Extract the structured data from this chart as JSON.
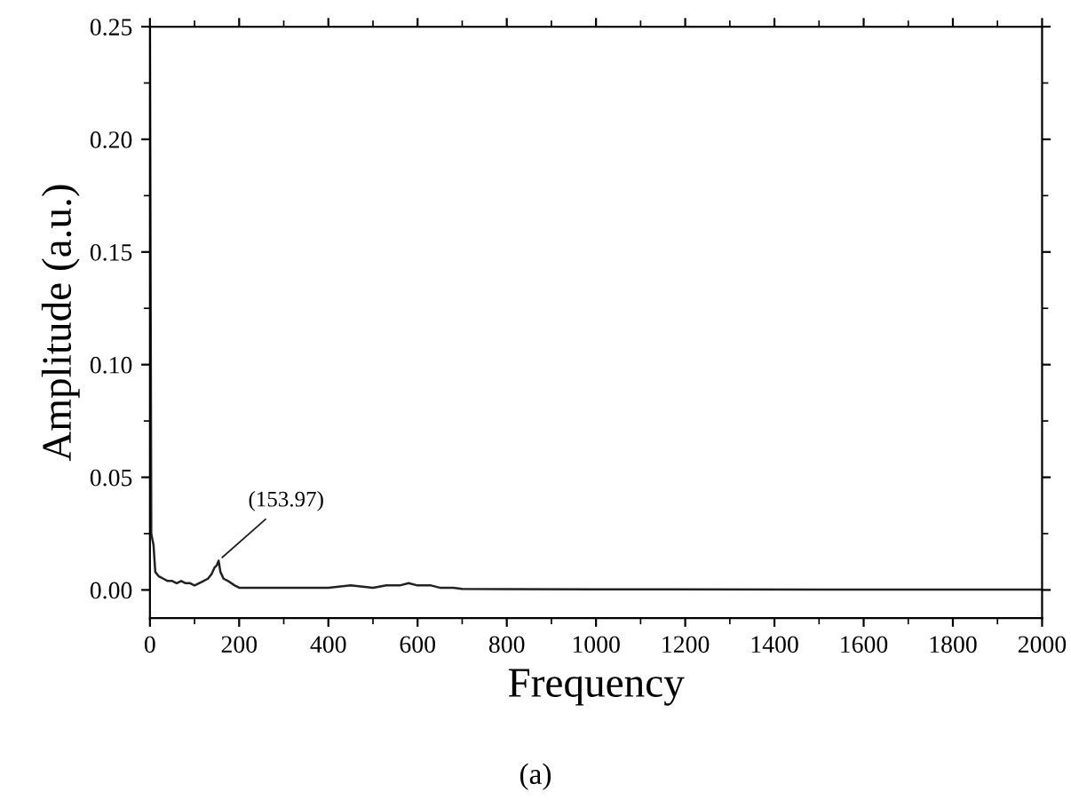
{
  "chart_data": {
    "type": "line",
    "xlabel": "Frequency",
    "ylabel": "Amplitude (a.u.)",
    "x": [
      0,
      3,
      8,
      12,
      20,
      30,
      40,
      50,
      60,
      70,
      80,
      90,
      100,
      110,
      120,
      130,
      138,
      145,
      150,
      153.97,
      158,
      165,
      175,
      190,
      200,
      250,
      300,
      350,
      400,
      450,
      500,
      530,
      560,
      580,
      600,
      630,
      650,
      680,
      700,
      800,
      1000,
      1500,
      2000
    ],
    "series": [
      {
        "color": "#222222",
        "values": [
          0.25,
          0.025,
          0.02,
          0.008,
          0.006,
          0.005,
          0.004,
          0.004,
          0.003,
          0.004,
          0.003,
          0.003,
          0.002,
          0.003,
          0.004,
          0.005,
          0.007,
          0.01,
          0.011,
          0.013,
          0.008,
          0.005,
          0.004,
          0.002,
          0.001,
          0.001,
          0.001,
          0.001,
          0.001,
          0.002,
          0.001,
          0.002,
          0.002,
          0.003,
          0.002,
          0.002,
          0.001,
          0.001,
          0.0005,
          0.0004,
          0.0003,
          0.0002,
          0.0002
        ]
      }
    ],
    "xlim": [
      0,
      2000
    ],
    "xticks": [
      0,
      200,
      400,
      600,
      800,
      1000,
      1200,
      1400,
      1600,
      1800,
      2000
    ],
    "ylim": [
      -0.0125,
      0.25
    ],
    "yticks": [
      {
        "value": 0,
        "label": "0.00"
      },
      {
        "value": 0.05,
        "label": "0.05"
      },
      {
        "value": 0.1,
        "label": "0.10"
      },
      {
        "value": 0.15,
        "label": "0.15"
      },
      {
        "value": 0.2,
        "label": "0.20"
      },
      {
        "value": 0.25,
        "label": "0.25"
      }
    ],
    "grid": false,
    "legend": false,
    "marker": "none",
    "line_style": "solid",
    "annotations": [
      {
        "text": "(153.97)",
        "x": 153.97,
        "y": 0.013
      },
      "(a)"
    ]
  }
}
